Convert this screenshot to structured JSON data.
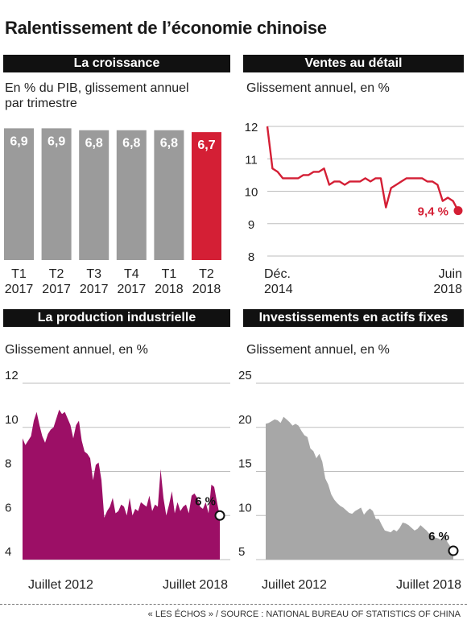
{
  "title": "Ralentissement de l’économie chinoise",
  "footer": "« LES ÉCHOS » / SOURCE : NATIONAL BUREAU OF STATISTICS OF CHINA",
  "colors": {
    "accent": "#d41f35",
    "bar": "#9b9b9b",
    "industrial": "#9c0f66",
    "investment": "#a7a7a7",
    "header": "#111111"
  },
  "chart_data": [
    {
      "type": "bar",
      "title": "La croissance",
      "subtitle_lines": [
        "En % du PIB, glissement annuel",
        "par trimestre"
      ],
      "categories": [
        {
          "quarter": "T1",
          "year": "2017"
        },
        {
          "quarter": "T2",
          "year": "2017"
        },
        {
          "quarter": "T3",
          "year": "2017"
        },
        {
          "quarter": "T4",
          "year": "2017"
        },
        {
          "quarter": "T1",
          "year": "2018"
        },
        {
          "quarter": "T2",
          "year": "2018"
        }
      ],
      "values": [
        6.9,
        6.9,
        6.8,
        6.8,
        6.8,
        6.7
      ],
      "value_labels": [
        "6,9",
        "6,9",
        "6,8",
        "6,8",
        "6,8",
        "6,7"
      ],
      "highlight_index": 5,
      "ylim": [
        0,
        7.0
      ]
    },
    {
      "type": "line",
      "title": "Ventes au détail",
      "subtitle_lines": [
        "Glissement annuel, en %"
      ],
      "y_ticks": [
        12,
        11,
        10,
        9,
        8
      ],
      "ylim": [
        8,
        12
      ],
      "x_labels": [
        {
          "line1": "Déc.",
          "line2": "2014"
        },
        {
          "line1": "Juin",
          "line2": "2018"
        }
      ],
      "values": [
        12.0,
        10.7,
        10.6,
        10.4,
        10.4,
        10.4,
        10.4,
        10.5,
        10.5,
        10.6,
        10.6,
        10.7,
        10.2,
        10.3,
        10.3,
        10.2,
        10.3,
        10.3,
        10.3,
        10.4,
        10.3,
        10.4,
        10.4,
        9.5,
        10.1,
        10.2,
        10.3,
        10.4,
        10.4,
        10.4,
        10.4,
        10.3,
        10.3,
        10.2,
        9.7,
        9.8,
        9.7,
        9.4
      ],
      "end_label": "9,4 %"
    },
    {
      "type": "area",
      "title": "La production industrielle",
      "subtitle_lines": [
        "Glissement annuel, en %"
      ],
      "y_ticks": [
        12,
        10,
        8,
        6,
        4
      ],
      "ylim": [
        4,
        12
      ],
      "x_labels": [
        "Juillet 2012",
        "Juillet 2018"
      ],
      "values": [
        9.5,
        9.2,
        9.4,
        9.6,
        10.3,
        10.7,
        10.1,
        9.6,
        9.3,
        9.7,
        9.9,
        10.0,
        10.4,
        10.8,
        10.6,
        10.7,
        10.4,
        10.1,
        9.5,
        10.1,
        10.3,
        9.4,
        8.9,
        8.8,
        8.6,
        7.6,
        8.3,
        8.4,
        7.6,
        5.9,
        6.2,
        6.4,
        6.8,
        6.1,
        6.2,
        6.5,
        6.4,
        6.0,
        6.8,
        6.0,
        6.3,
        6.2,
        6.6,
        6.5,
        6.4,
        6.9,
        6.2,
        6.5,
        6.4,
        8.1,
        6.8,
        6.0,
        6.5,
        7.1,
        6.1,
        6.6,
        6.2,
        6.4,
        6.5,
        6.1,
        6.9,
        7.0,
        6.8,
        6.4,
        6.3,
        6.6,
        6.1,
        7.4,
        7.3,
        6.6,
        6.0
      ],
      "end_label": "6 %"
    },
    {
      "type": "area",
      "title": "Investissements en actifs fixes",
      "subtitle_lines": [
        "Glissement annuel, en %"
      ],
      "y_ticks": [
        25,
        20,
        15,
        10,
        5
      ],
      "ylim": [
        5,
        25
      ],
      "x_labels": [
        "Juillet 2012",
        "Juillet 2018"
      ],
      "values": [
        20.4,
        20.5,
        20.7,
        20.9,
        20.8,
        20.5,
        21.2,
        20.9,
        20.6,
        20.2,
        20.4,
        20.2,
        19.6,
        19.1,
        18.9,
        17.6,
        17.3,
        16.5,
        17.0,
        16.1,
        14.2,
        13.5,
        12.4,
        11.8,
        11.4,
        11.1,
        10.9,
        10.6,
        10.3,
        10.2,
        10.5,
        10.7,
        10.9,
        10.1,
        10.5,
        10.8,
        10.5,
        9.6,
        9.6,
        8.9,
        8.3,
        8.2,
        8.1,
        8.4,
        8.2,
        8.6,
        9.2,
        9.1,
        8.9,
        8.6,
        8.3,
        8.5,
        8.9,
        8.6,
        8.3,
        7.9,
        7.6,
        7.5,
        7.4,
        7.2,
        7.8,
        7.0,
        6.5,
        6.0
      ],
      "end_label": "6 %"
    }
  ]
}
